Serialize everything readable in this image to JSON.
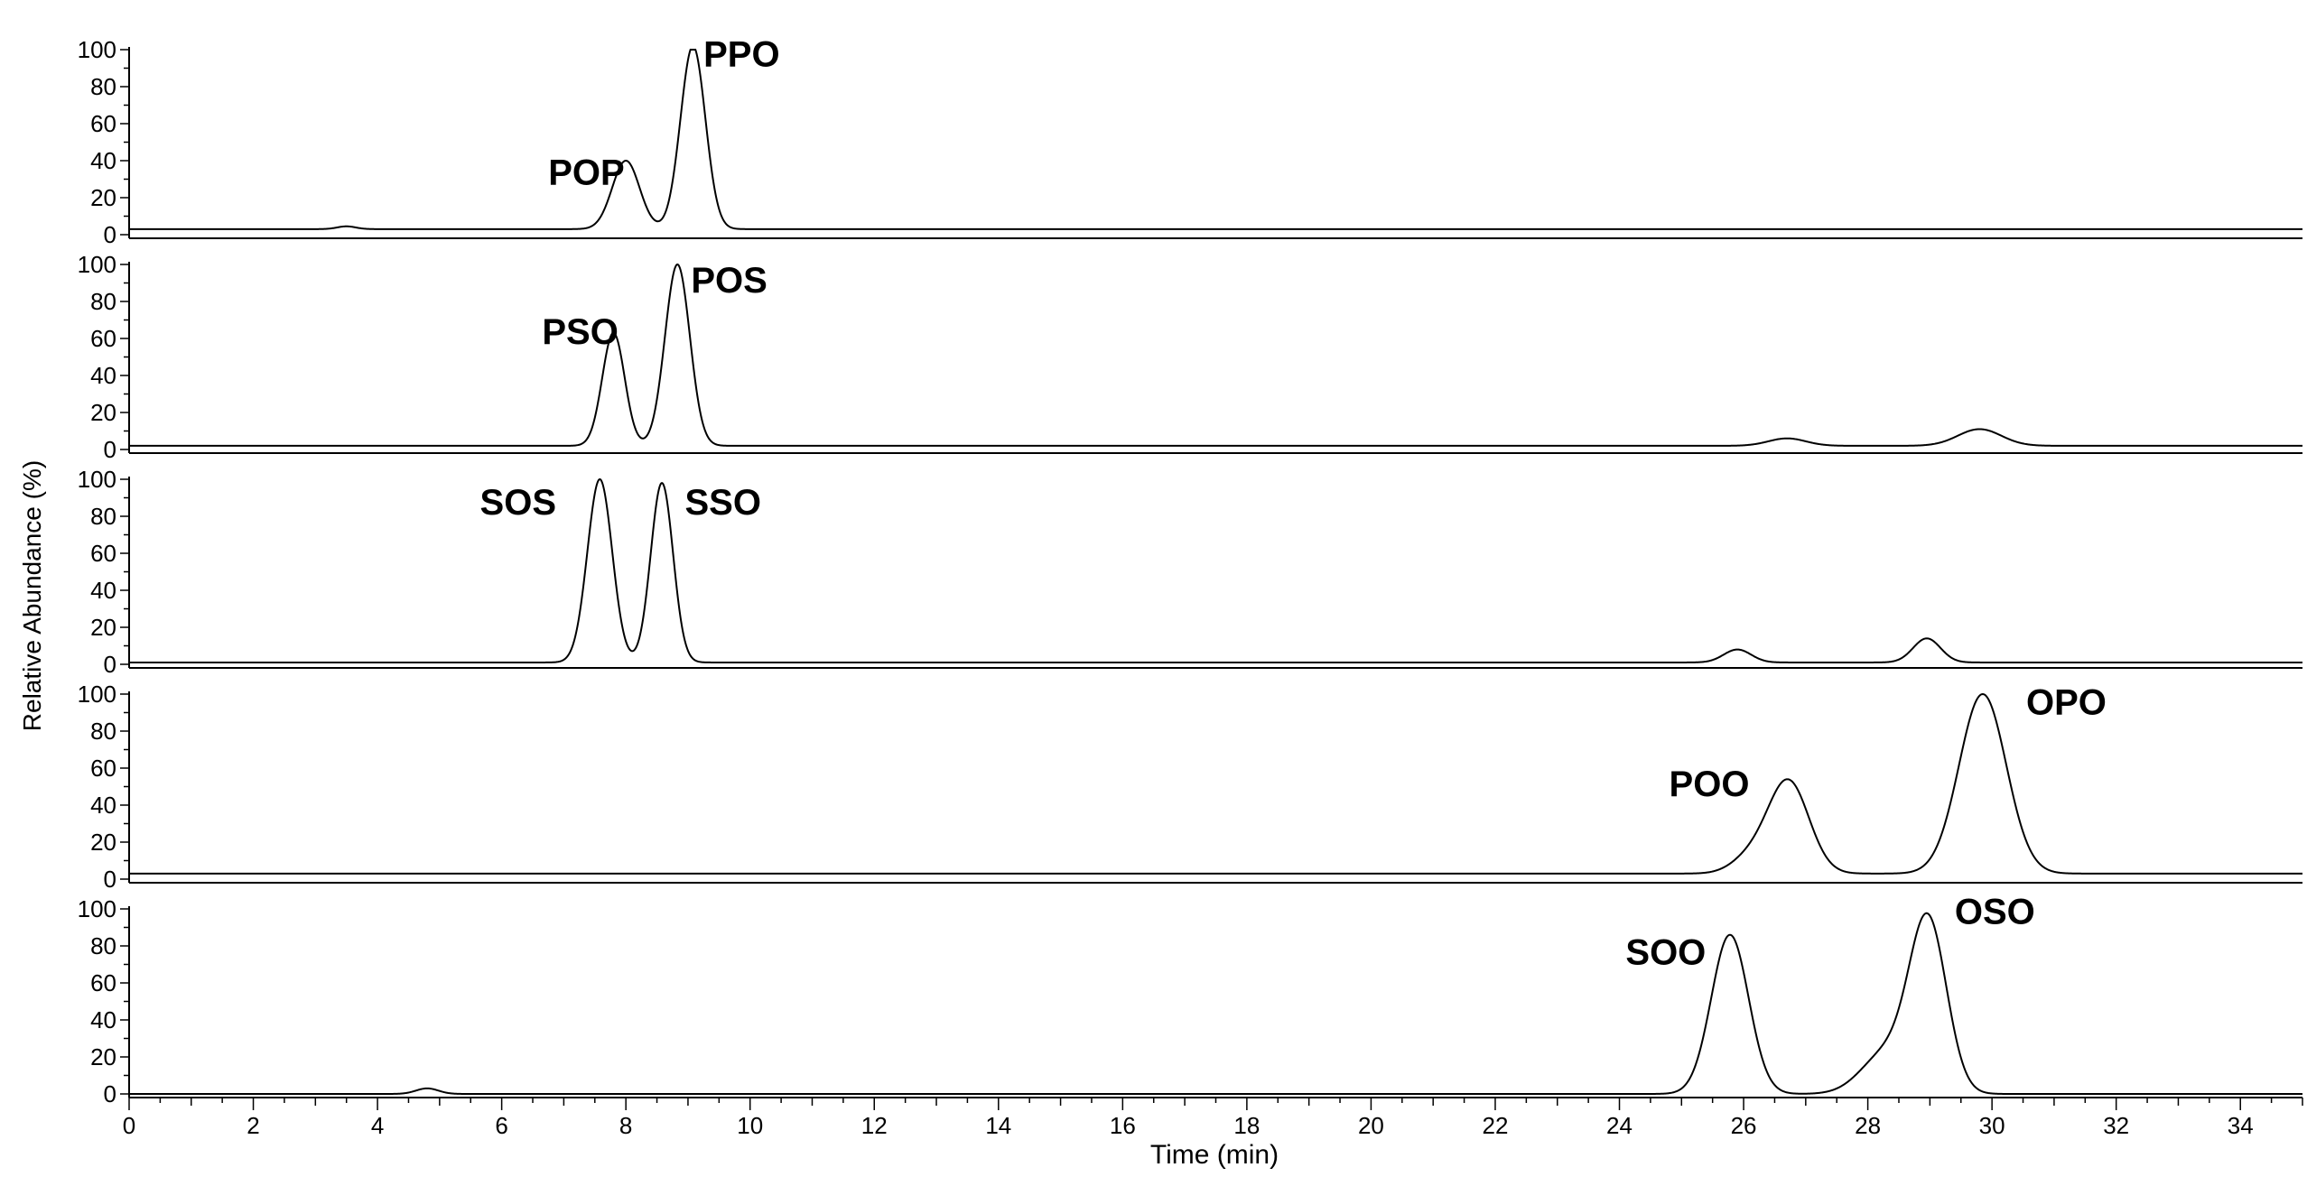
{
  "chart_data": {
    "type": "line",
    "ylabel": "Relative Abundance (%)",
    "xlabel": "Time (min)",
    "xlim": [
      0,
      35
    ],
    "x_ticks": [
      0,
      2,
      4,
      6,
      8,
      10,
      12,
      14,
      16,
      18,
      20,
      22,
      24,
      26,
      28,
      30,
      32,
      34
    ],
    "ylim": [
      0,
      100
    ],
    "y_ticks": [
      0,
      20,
      40,
      60,
      80,
      100
    ],
    "grid": false,
    "panels": [
      {
        "baseline": 3,
        "peaks": [
          {
            "label": "",
            "x": 3.5,
            "height": 1.5,
            "width": 0.15
          },
          {
            "label": "POP",
            "x": 8.0,
            "height": 37,
            "width": 0.22
          },
          {
            "label": "PPO",
            "x": 9.08,
            "height": 99,
            "width": 0.2
          }
        ],
        "labels": [
          {
            "text": "POP",
            "x": 6.75,
            "y": 27
          },
          {
            "text": "PPO",
            "x": 9.25,
            "y": 91
          }
        ]
      },
      {
        "baseline": 2,
        "peaks": [
          {
            "label": "PSO",
            "x": 7.8,
            "height": 61,
            "width": 0.18
          },
          {
            "label": "POS",
            "x": 8.83,
            "height": 98,
            "width": 0.2
          },
          {
            "label": "",
            "x": 26.7,
            "height": 4,
            "width": 0.3
          },
          {
            "label": "",
            "x": 29.8,
            "height": 9,
            "width": 0.35
          }
        ],
        "labels": [
          {
            "text": "PSO",
            "x": 6.65,
            "y": 57
          },
          {
            "text": "POS",
            "x": 9.05,
            "y": 85
          }
        ]
      },
      {
        "baseline": 1,
        "peaks": [
          {
            "label": "SOS",
            "x": 7.58,
            "height": 99,
            "width": 0.2
          },
          {
            "label": "SSO",
            "x": 8.58,
            "height": 97,
            "width": 0.18
          },
          {
            "label": "",
            "x": 25.9,
            "height": 7,
            "width": 0.22
          },
          {
            "label": "",
            "x": 28.95,
            "height": 13,
            "width": 0.22
          }
        ],
        "labels": [
          {
            "text": "SOS",
            "x": 5.65,
            "y": 81
          },
          {
            "text": "SSO",
            "x": 8.95,
            "y": 81
          }
        ]
      },
      {
        "baseline": 3,
        "peaks": [
          {
            "label": "POO",
            "x": 26.72,
            "height": 50,
            "width": 0.33
          },
          {
            "label": "",
            "x": 26.1,
            "height": 8,
            "width": 0.3
          },
          {
            "label": "OPO",
            "x": 29.85,
            "height": 97,
            "width": 0.38
          }
        ],
        "labels": [
          {
            "text": "POO",
            "x": 24.8,
            "y": 45
          },
          {
            "text": "OPO",
            "x": 30.55,
            "y": 89
          }
        ]
      },
      {
        "baseline": 0,
        "peaks": [
          {
            "label": "",
            "x": 4.8,
            "height": 3,
            "width": 0.18
          },
          {
            "label": "SOO",
            "x": 25.78,
            "height": 86,
            "width": 0.3
          },
          {
            "label": "",
            "x": 28.3,
            "height": 22,
            "width": 0.4
          },
          {
            "label": "OSO",
            "x": 28.97,
            "height": 92,
            "width": 0.3
          }
        ],
        "labels": [
          {
            "text": "SOO",
            "x": 24.1,
            "y": 70
          },
          {
            "text": "OSO",
            "x": 29.4,
            "y": 92
          }
        ]
      }
    ]
  }
}
